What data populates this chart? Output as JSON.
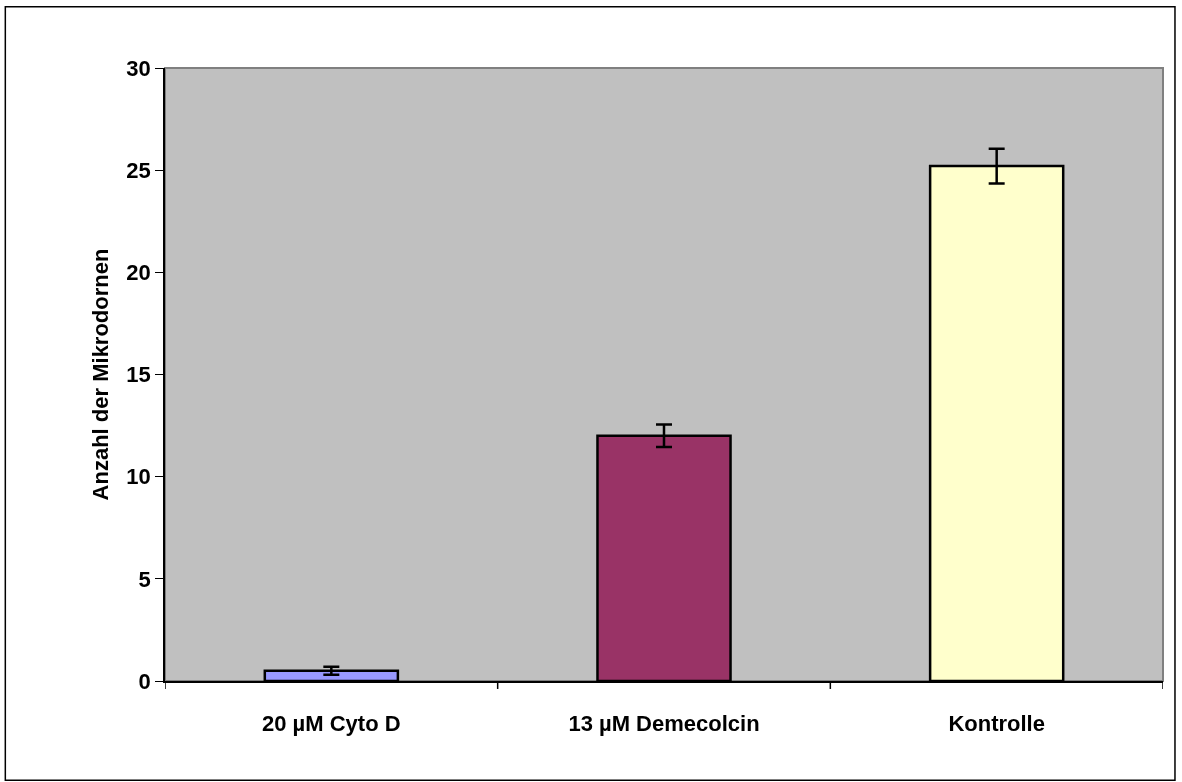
{
  "chart_data": {
    "type": "bar",
    "ylabel": "Anzahl der Mikrodornen",
    "categories": [
      "20 µM Cyto D",
      "13 µM Demecolcin",
      "Kontrolle"
    ],
    "values": [
      0.5,
      12.0,
      25.2
    ],
    "errors": [
      0.2,
      0.55,
      0.85
    ],
    "colors": [
      "#9999ff",
      "#993366",
      "#ffffcc"
    ],
    "ylim": [
      0,
      30
    ],
    "yticks": [
      0,
      5,
      10,
      15,
      20,
      25,
      30
    ],
    "grid": false
  }
}
